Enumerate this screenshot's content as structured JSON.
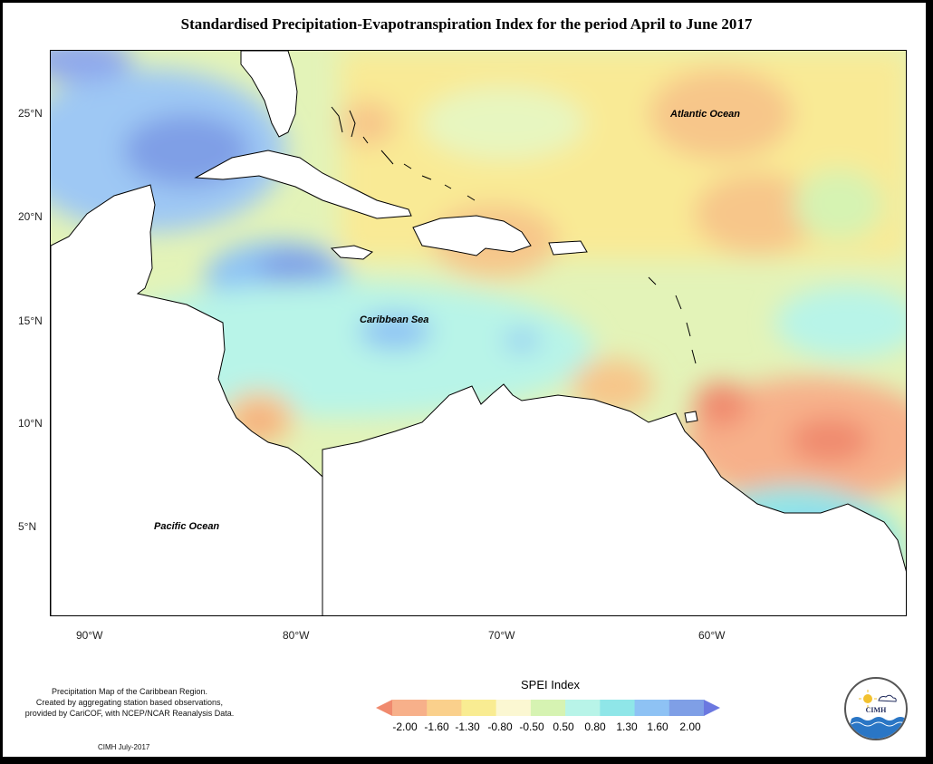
{
  "title": "Standardised Precipitation-Evapotranspiration Index for the period April to June 2017",
  "map": {
    "lat_ticks": [
      "25°N",
      "20°N",
      "15°N",
      "10°N",
      "5°N"
    ],
    "lon_ticks": [
      "90°W",
      "80°W",
      "70°W",
      "60°W"
    ],
    "labels": {
      "atlantic": "Atlantic Ocean",
      "caribbean": "Caribbean Sea",
      "pacific": "Pacific Ocean"
    },
    "extent": {
      "lon": [
        -92,
        -50
      ],
      "lat": [
        0.5,
        28
      ]
    }
  },
  "legend": {
    "title": "SPEI Index",
    "ticks": [
      "-2.00",
      "-1.60",
      "-1.30",
      "-0.80",
      "-0.50",
      "0.50",
      "0.80",
      "1.30",
      "1.60",
      "2.00"
    ],
    "colors": [
      "#f08a6e",
      "#f7b08a",
      "#fad08c",
      "#f9ec92",
      "#fbf7d2",
      "#d6f3b2",
      "#b8f4e8",
      "#8fe6e8",
      "#8ec2f4",
      "#7f9fe6",
      "#6b78e0"
    ]
  },
  "footnote": {
    "line1": "Precipitation Map of the Caribbean Region.",
    "line2": "Created by aggregating station based observations,",
    "line3": "provided by CariCOF, with NCEP/NCAR Reanalysis Data.",
    "credit": "CIMH July-2017"
  },
  "logo": {
    "text": "CIMH"
  }
}
